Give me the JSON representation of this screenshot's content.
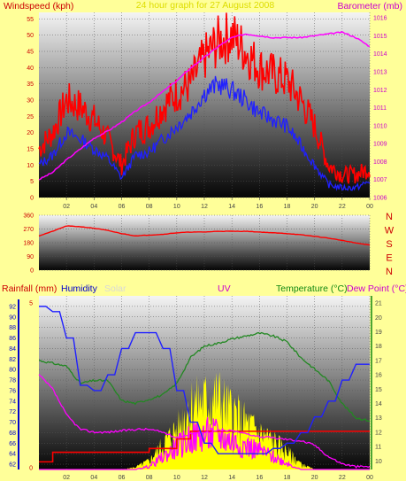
{
  "header": {
    "windspeed_label": "Windspeed (kph)",
    "title": "24 hour graph for 27 August 2008",
    "barometer_label": "Barometer (mb)"
  },
  "colors": {
    "background": "#ffff99",
    "windspeed": "#ff0000",
    "gust": "#ff0000",
    "avg_wind": "#2020ff",
    "barometer": "#ff00ff",
    "direction": "#ff0000",
    "rain": "#ff0000",
    "humidity": "#2020ff",
    "solar": "#ffff00",
    "uv": "#ff00ff",
    "temperature": "#228822",
    "dewpoint": "#ff00ff",
    "axis_left_red": "#cc0000",
    "axis_right_magenta": "#cc00cc",
    "axis_blue": "#0000cc"
  },
  "lower_header": {
    "rainfall_label": "Rainfall (mm)",
    "humidity_label": "Humidity",
    "solar_label": "Solar",
    "uv_label": "UV",
    "temperature_label": "Temperature (°C)",
    "dewpoint_label": "Dew Point (°C)"
  },
  "compass": [
    "N",
    "W",
    "S",
    "E",
    "N"
  ],
  "chart_data": [
    {
      "type": "line",
      "panel": "wind_barometer",
      "x_ticks": [
        "02",
        "04",
        "06",
        "08",
        "10",
        "12",
        "14",
        "16",
        "18",
        "20",
        "22",
        "00"
      ],
      "y_left_ticks": [
        0,
        5,
        10,
        15,
        20,
        25,
        30,
        35,
        40,
        45,
        50,
        55
      ],
      "y_right_ticks": [
        1006,
        1007,
        1008,
        1009,
        1010,
        1011,
        1012,
        1013,
        1014,
        1015,
        1016
      ],
      "ylim_left": [
        0,
        57
      ],
      "ylim_right": [
        1006,
        1016.3
      ],
      "hours": [
        0,
        1,
        2,
        3,
        4,
        5,
        6,
        7,
        8,
        9,
        10,
        11,
        12,
        13,
        14,
        15,
        16,
        17,
        18,
        19,
        20,
        21,
        22,
        23,
        24
      ],
      "series": [
        {
          "name": "gust",
          "axis": "left",
          "values": [
            15,
            20,
            30,
            28,
            24,
            18,
            10,
            20,
            22,
            28,
            32,
            35,
            43,
            48,
            50,
            45,
            40,
            38,
            36,
            30,
            22,
            10,
            7,
            7,
            9
          ]
        },
        {
          "name": "average",
          "axis": "left",
          "values": [
            10,
            13,
            20,
            18,
            15,
            12,
            6,
            13,
            14,
            18,
            22,
            26,
            32,
            35,
            33,
            30,
            26,
            24,
            22,
            16,
            10,
            4,
            3,
            3,
            5
          ]
        },
        {
          "name": "barometer",
          "axis": "right",
          "values": [
            1007.0,
            1007.4,
            1008.1,
            1008.7,
            1009.3,
            1009.7,
            1010.2,
            1010.8,
            1011.3,
            1011.9,
            1012.5,
            1013.2,
            1013.8,
            1014.4,
            1014.9,
            1015.1,
            1015.0,
            1014.9,
            1014.9,
            1014.9,
            1015.0,
            1015.1,
            1015.2,
            1014.9,
            1014.4
          ]
        }
      ]
    },
    {
      "type": "line",
      "panel": "wind_direction",
      "y_ticks": [
        0,
        90,
        180,
        270,
        360
      ],
      "ylim": [
        0,
        360
      ],
      "hours": [
        0,
        1,
        2,
        3,
        4,
        5,
        6,
        7,
        8,
        9,
        10,
        11,
        12,
        13,
        14,
        15,
        16,
        17,
        18,
        19,
        20,
        21,
        22,
        23,
        24
      ],
      "values": [
        225,
        255,
        290,
        285,
        275,
        260,
        240,
        225,
        230,
        235,
        245,
        250,
        250,
        255,
        255,
        255,
        250,
        245,
        240,
        232,
        222,
        210,
        195,
        178,
        165
      ]
    },
    {
      "type": "line",
      "panel": "humidity_temperature",
      "y_left_ticks": [
        62,
        64,
        66,
        68,
        70,
        72,
        74,
        76,
        78,
        80,
        82,
        84,
        86,
        88,
        90,
        92
      ],
      "y_right_ticks": [
        10,
        11,
        12,
        13,
        14,
        15,
        16,
        17,
        18,
        19,
        20,
        21
      ],
      "ylim_humidity": [
        61,
        94
      ],
      "ylim_temperature": [
        9.4,
        21.5
      ],
      "hours": [
        0,
        1,
        2,
        3,
        4,
        5,
        6,
        7,
        8,
        9,
        10,
        11,
        12,
        13,
        14,
        15,
        16,
        17,
        18,
        19,
        20,
        21,
        22,
        23,
        24
      ],
      "series": [
        {
          "name": "humidity",
          "axis": "left",
          "values": [
            92,
            91,
            86,
            77,
            76,
            79,
            84,
            87,
            87,
            84,
            76,
            70,
            66,
            64,
            64,
            64,
            64,
            65,
            66,
            68,
            71,
            74,
            78,
            81,
            81
          ]
        },
        {
          "name": "temperature",
          "axis": "right",
          "values": [
            17.0,
            16.8,
            16.6,
            15.4,
            15.6,
            15.6,
            14.2,
            14.0,
            14.3,
            14.6,
            15.4,
            17.2,
            18.0,
            18.2,
            18.5,
            18.7,
            18.9,
            18.7,
            18.3,
            17.2,
            16.4,
            15.6,
            14.0,
            13.0,
            12.8
          ]
        },
        {
          "name": "dew point",
          "axis": "right",
          "values": [
            16.0,
            15.0,
            13.2,
            12.2,
            12.0,
            12.0,
            12.1,
            12.2,
            12.2,
            12.0,
            11.6,
            11.9,
            12.0,
            12.1,
            12.1,
            11.9,
            11.7,
            11.6,
            11.5,
            11.4,
            11.1,
            10.3,
            9.8,
            9.6,
            9.6
          ]
        }
      ]
    },
    {
      "type": "area",
      "panel": "solar_uv_rain",
      "hours": [
        0,
        1,
        2,
        3,
        4,
        5,
        6,
        7,
        8,
        9,
        10,
        11,
        12,
        13,
        14,
        15,
        16,
        17,
        18,
        19,
        20,
        21,
        22,
        23,
        24
      ],
      "solar_norm": [
        0,
        0,
        0,
        0,
        0,
        0,
        0,
        0.03,
        0.12,
        0.35,
        0.55,
        0.9,
        0.95,
        1.0,
        0.8,
        0.65,
        0.5,
        0.4,
        0.25,
        0.08,
        0,
        0,
        0,
        0,
        0
      ],
      "uv_norm": [
        0,
        0,
        0,
        0,
        0,
        0,
        0,
        0,
        0.05,
        0.2,
        0.35,
        0.5,
        0.55,
        0.55,
        0.45,
        0.38,
        0.3,
        0.2,
        0.1,
        0,
        0,
        0,
        0,
        0,
        0
      ],
      "rain_norm": [
        0.08,
        0.18,
        0.18,
        0.18,
        0.18,
        0.18,
        0.18,
        0.18,
        0.22,
        0.22,
        0.32,
        0.4,
        0.4,
        0.4,
        0.4,
        0.4,
        0.4,
        0.4,
        0.4,
        0.4,
        0.4,
        0.4,
        0.4,
        0.4,
        0.4
      ],
      "y_rain_ticks": [
        "0",
        "5"
      ]
    }
  ]
}
